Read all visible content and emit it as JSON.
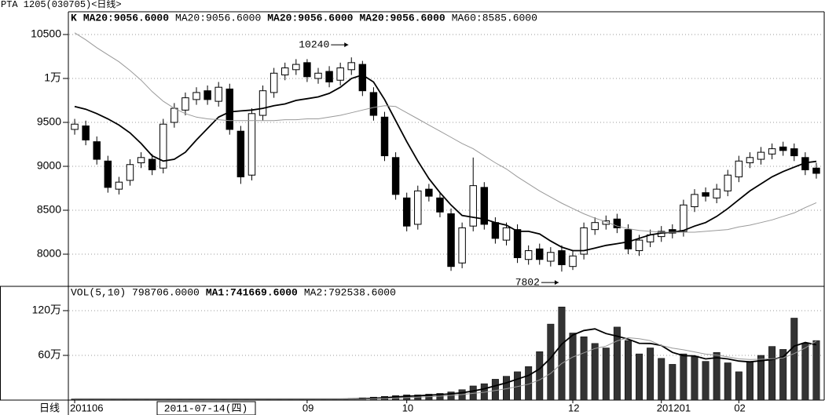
{
  "header": {
    "title": "PTA 1205(030705)<日线>"
  },
  "chart_data": [
    {
      "type": "candlestick",
      "legend": [
        {
          "label": "K",
          "color": "#000",
          "bold": true
        },
        {
          "label": "MA20:9056.6000",
          "color": "#000",
          "bold": true
        },
        {
          "label": "MA20:9056.6000",
          "color": "#777",
          "bold": false
        },
        {
          "label": "MA20:9056.6000",
          "color": "#000",
          "bold": true
        },
        {
          "label": "MA20:9056.6000",
          "color": "#000",
          "bold": true
        },
        {
          "label": "MA60:8585.6000",
          "color": "#777",
          "bold": false
        }
      ],
      "open": [
        9420,
        9460,
        9280,
        9060,
        8740,
        8840,
        9040,
        9080,
        8980,
        9500,
        9640,
        9760,
        9860,
        9740,
        9880,
        9400,
        8900,
        9580,
        9840,
        10040,
        10100,
        10180,
        10000,
        10080,
        9980,
        10100,
        10160,
        9840,
        9560,
        9100,
        8640,
        8340,
        8740,
        8640,
        8460,
        7900,
        8320,
        8760,
        8360,
        8160,
        8280,
        7940,
        8060,
        7920,
        8040,
        7860,
        8000,
        8280,
        8340,
        8400,
        8280,
        8040,
        8140,
        8200,
        8280,
        8260,
        8540,
        8700,
        8640,
        8720,
        8880,
        9040,
        9080,
        9140,
        9220,
        9200,
        9100,
        8980
      ],
      "high": [
        9540,
        9520,
        9340,
        9120,
        8880,
        9080,
        9160,
        9140,
        9540,
        9720,
        9840,
        9900,
        9920,
        9960,
        9940,
        9460,
        9660,
        9920,
        10120,
        10180,
        10220,
        10220,
        10120,
        10140,
        10180,
        10240,
        10200,
        9900,
        9620,
        9160,
        8700,
        8780,
        8800,
        8700,
        8520,
        8360,
        9100,
        8820,
        8420,
        8360,
        8340,
        8100,
        8120,
        8080,
        8100,
        8040,
        8360,
        8420,
        8440,
        8460,
        8340,
        8220,
        8280,
        8320,
        8340,
        8620,
        8740,
        8760,
        8800,
        8960,
        9120,
        9160,
        9220,
        9260,
        9280,
        9260,
        9160,
        9040
      ],
      "low": [
        9360,
        9240,
        9020,
        8700,
        8680,
        8780,
        8980,
        8900,
        8920,
        9440,
        9580,
        9700,
        9700,
        9680,
        9360,
        8800,
        8840,
        9520,
        9780,
        9980,
        10040,
        9960,
        9940,
        9900,
        9920,
        10040,
        9800,
        9520,
        9060,
        8620,
        8260,
        8280,
        8600,
        8420,
        7810,
        7840,
        8260,
        8280,
        8120,
        8100,
        7900,
        7880,
        7880,
        7860,
        7802,
        7820,
        7940,
        8220,
        8280,
        8240,
        8000,
        7980,
        8080,
        8140,
        8180,
        8200,
        8480,
        8600,
        8580,
        8660,
        8820,
        8980,
        9020,
        9080,
        9120,
        9060,
        8900,
        8860
      ],
      "close": [
        9480,
        9300,
        9080,
        8760,
        8820,
        9020,
        9100,
        8960,
        9480,
        9660,
        9780,
        9840,
        9760,
        9900,
        9420,
        8880,
        9600,
        9860,
        10060,
        10120,
        10160,
        10020,
        10060,
        9960,
        10120,
        10180,
        9860,
        9580,
        9120,
        8680,
        8320,
        8720,
        8660,
        8480,
        7860,
        8300,
        8780,
        8340,
        8180,
        8300,
        7960,
        8040,
        7940,
        8020,
        7880,
        7980,
        8300,
        8360,
        8380,
        8300,
        8060,
        8160,
        8220,
        8260,
        8240,
        8560,
        8680,
        8660,
        8740,
        8900,
        9060,
        9100,
        9160,
        9200,
        9180,
        9120,
        8960,
        8920
      ],
      "series": [
        {
          "color": "#000",
          "values": [
            9680,
            9650,
            9600,
            9540,
            9470,
            9380,
            9260,
            9120,
            9060,
            9080,
            9160,
            9300,
            9430,
            9560,
            9620,
            9630,
            9640,
            9660,
            9690,
            9710,
            9750,
            9770,
            9790,
            9830,
            9900,
            10000,
            10040,
            9960,
            9760,
            9520,
            9280,
            9060,
            8860,
            8700,
            8560,
            8440,
            8420,
            8400,
            8360,
            8330,
            8260,
            8260,
            8230,
            8150,
            8080,
            8040,
            8040,
            8070,
            8100,
            8120,
            8140,
            8180,
            8220,
            8240,
            8250,
            8270,
            8320,
            8360,
            8430,
            8520,
            8620,
            8720,
            8800,
            8880,
            8940,
            8990,
            9040,
            9056.6
          ]
        },
        {
          "color": "#999",
          "values": [
            10520,
            10440,
            10350,
            10270,
            10190,
            10090,
            9980,
            9850,
            9740,
            9660,
            9600,
            9560,
            9540,
            9530,
            9520,
            9520,
            9520,
            9520,
            9520,
            9530,
            9530,
            9540,
            9540,
            9560,
            9580,
            9610,
            9640,
            9670,
            9690,
            9680,
            9610,
            9540,
            9470,
            9400,
            9330,
            9260,
            9200,
            9120,
            9040,
            8970,
            8880,
            8800,
            8720,
            8650,
            8580,
            8520,
            8460,
            8410,
            8370,
            8320,
            8290,
            8270,
            8260,
            8250,
            8250,
            8250,
            8250,
            8260,
            8270,
            8280,
            8310,
            8330,
            8360,
            8390,
            8430,
            8470,
            8530,
            8585.6
          ]
        }
      ],
      "annotations": [
        {
          "text": "10240",
          "value": 10240
        },
        {
          "text": "7802",
          "value": 7802
        }
      ],
      "ylim": [
        7634,
        10759
      ],
      "yticks": [
        10500,
        {
          "value": 10000,
          "label": "1万"
        },
        9500,
        9000,
        8500,
        8000
      ],
      "grid": true
    },
    {
      "type": "bar",
      "legend": [
        {
          "label": "VOL(5,10) 798706.0000",
          "color": "#000",
          "bold": false
        },
        {
          "label": "MA1:741669.6000",
          "color": "#000",
          "bold": true
        },
        {
          "label": "MA2:792538.6000",
          "color": "#777",
          "bold": false
        }
      ],
      "x_axis_name": "日线",
      "cursor_date": "2011-07-14(四)",
      "categories": [
        "201106",
        null,
        null,
        null,
        null,
        null,
        null,
        null,
        null,
        null,
        null,
        null,
        null,
        null,
        null,
        null,
        null,
        null,
        null,
        null,
        null,
        "09",
        null,
        null,
        null,
        null,
        null,
        null,
        null,
        null,
        "10",
        null,
        null,
        null,
        null,
        null,
        null,
        null,
        null,
        null,
        null,
        null,
        null,
        null,
        null,
        "12",
        null,
        null,
        null,
        null,
        null,
        null,
        null,
        "201201",
        null,
        null,
        null,
        null,
        null,
        null,
        "02",
        null,
        null,
        null,
        null,
        null,
        null,
        null
      ],
      "values": [
        15000,
        12000,
        14000,
        10000,
        12000,
        13000,
        11000,
        12000,
        15000,
        14000,
        12000,
        13000,
        11000,
        12000,
        14000,
        16000,
        13000,
        12000,
        14000,
        15000,
        13000,
        14000,
        12000,
        15000,
        16000,
        20000,
        30000,
        40000,
        50000,
        60000,
        70000,
        70000,
        80000,
        90000,
        110000,
        140000,
        190000,
        220000,
        280000,
        320000,
        380000,
        450000,
        650000,
        1020000,
        1250000,
        900000,
        850000,
        760000,
        700000,
        980000,
        800000,
        620000,
        700000,
        560000,
        480000,
        620000,
        580000,
        520000,
        640000,
        500000,
        380000,
        520000,
        600000,
        720000,
        680000,
        1100000,
        760000,
        798706
      ],
      "series": [
        {
          "color": "#000",
          "values": [
            13000,
            13000,
            13000,
            13000,
            13000,
            13000,
            13000,
            13000,
            13000,
            13000,
            13000,
            13000,
            13000,
            13000,
            13000,
            13000,
            13000,
            13000,
            13000,
            13000,
            13000,
            13000,
            13000,
            13000,
            13000,
            15000,
            18000,
            24000,
            32000,
            42000,
            52000,
            58000,
            66000,
            74000,
            84000,
            98000,
            122000,
            152000,
            192000,
            232000,
            282000,
            330000,
            420000,
            564000,
            750000,
            874000,
            934000,
            956000,
            892000,
            858000,
            818000,
            762000,
            760000,
            732000,
            640000,
            596000,
            592000,
            552000,
            568000,
            552000,
            524000,
            512000,
            528000,
            544000,
            580000,
            724000,
            772000,
            741669.6
          ]
        },
        {
          "color": "#999",
          "values": [
            13000,
            13000,
            13000,
            13000,
            13000,
            13000,
            13000,
            13000,
            13000,
            13000,
            13000,
            13000,
            13000,
            13000,
            13000,
            13000,
            13000,
            13000,
            13000,
            13000,
            13000,
            13000,
            13000,
            13000,
            13000,
            13000,
            13000,
            18000,
            22000,
            27000,
            33000,
            39000,
            46000,
            53000,
            63000,
            75000,
            90000,
            105000,
            128000,
            153000,
            182000,
            214000,
            271000,
            358000,
            491000,
            578000,
            634000,
            693000,
            724000,
            795000,
            837000,
            824000,
            798000,
            732000,
            698000,
            675000,
            646000,
            617000,
            604000,
            580000,
            554000,
            545000,
            548000,
            556000,
            566000,
            624000,
            700000,
            792538.6
          ]
        }
      ],
      "ylim": [
        0,
        1526000
      ],
      "yticks": [
        {
          "value": 1200000,
          "label": "120万"
        },
        {
          "value": 600000,
          "label": "60万"
        }
      ],
      "grid": true
    }
  ]
}
